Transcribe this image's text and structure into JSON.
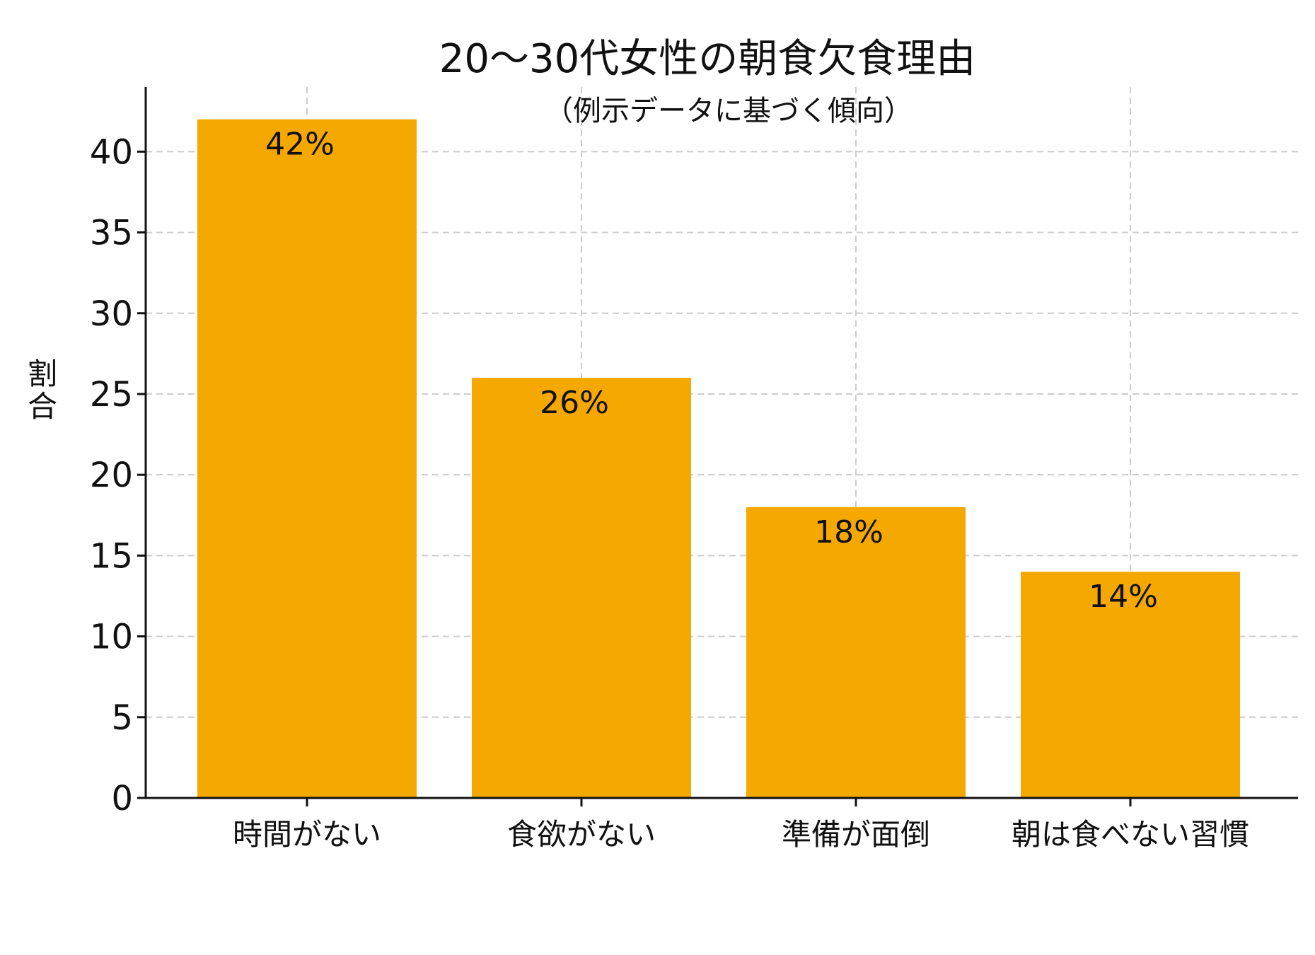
{
  "chart_data": {
    "type": "bar",
    "title": "20～30代女性の朝食欠食理由",
    "subtitle": "（例示データに基づく傾向）",
    "xlabel": "",
    "ylabel": "割合",
    "categories": [
      "時間がない",
      "食欲がない",
      "準備が面倒",
      "朝は食べない習慣"
    ],
    "values": [
      42,
      26,
      18,
      14
    ],
    "data_labels": [
      "42%",
      "26%",
      "18%",
      "14%"
    ],
    "ylim": [
      0,
      44
    ],
    "yticks": [
      0,
      5,
      10,
      15,
      20,
      25,
      30,
      35,
      40
    ],
    "ytick_labels": [
      "0",
      "5",
      "10",
      "15",
      "20",
      "25",
      "30",
      "35",
      "40"
    ],
    "grid": true,
    "grid_style": "dashed",
    "bar_color": "#F5A800",
    "grid_color": "#cccccc",
    "axis_color": "#111111"
  }
}
